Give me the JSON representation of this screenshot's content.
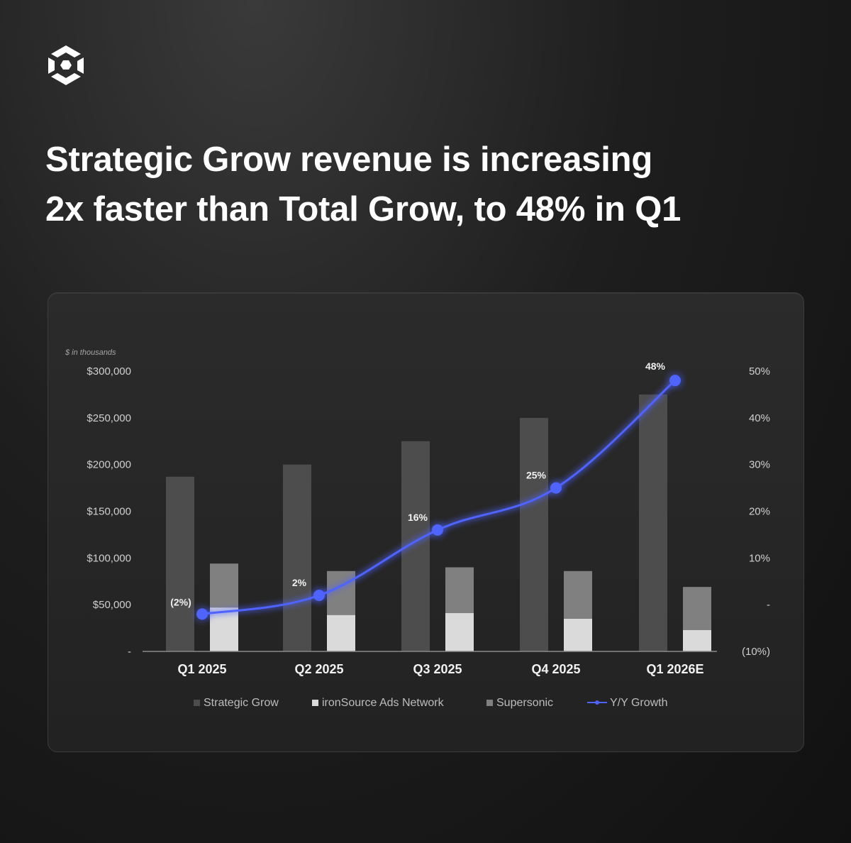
{
  "headline": {
    "line1": "Strategic Grow revenue is increasing",
    "line2": "2x faster than Total Grow, to 48% in Q1"
  },
  "brand": {
    "logo_icon": "unity-cube-logo"
  },
  "colors": {
    "strategic_grow": "#4d4d4d",
    "ironsource_ads_network": "#dadada",
    "supersonic": "#808080",
    "yy_growth": "#4f63ff"
  },
  "chart_data": {
    "type": "bar",
    "unit_note": "$ in thousands",
    "categories": [
      "Q1 2025",
      "Q2 2025",
      "Q3 2025",
      "Q4 2025",
      "Q1 2026E"
    ],
    "left_axis": {
      "ylim": [
        0,
        300000
      ],
      "ticks": [
        {
          "value": 0,
          "label": "-"
        },
        {
          "value": 50000,
          "label": "$50,000"
        },
        {
          "value": 100000,
          "label": "$100,000"
        },
        {
          "value": 150000,
          "label": "$150,000"
        },
        {
          "value": 200000,
          "label": "$200,000"
        },
        {
          "value": 250000,
          "label": "$250,000"
        },
        {
          "value": 300000,
          "label": "$300,000"
        }
      ]
    },
    "right_axis": {
      "ylim": [
        -10,
        50
      ],
      "ticks": [
        {
          "value": -10,
          "label": "(10%)"
        },
        {
          "value": 0,
          "label": "-"
        },
        {
          "value": 10,
          "label": "10%"
        },
        {
          "value": 20,
          "label": "20%"
        },
        {
          "value": 30,
          "label": "30%"
        },
        {
          "value": 40,
          "label": "40%"
        },
        {
          "value": 50,
          "label": "50%"
        }
      ]
    },
    "series": [
      {
        "name": "Strategic Grow",
        "type": "bar",
        "values": [
          187000,
          200000,
          225000,
          250000,
          275000
        ]
      },
      {
        "name": "ironSource Ads Network",
        "type": "stacked-bar",
        "values": [
          47000,
          39000,
          41000,
          35000,
          23000
        ]
      },
      {
        "name": "Supersonic",
        "type": "stacked-bar",
        "values": [
          47000,
          47000,
          49000,
          51000,
          46000
        ]
      },
      {
        "name": "Y/Y Growth",
        "type": "line",
        "axis": "right",
        "values": [
          -2,
          2,
          16,
          25,
          48
        ],
        "labels": [
          "(2%)",
          "2%",
          "16%",
          "25%",
          "48%"
        ]
      }
    ],
    "legend": [
      "Strategic Grow",
      "ironSource Ads Network",
      "Supersonic",
      "Y/Y Growth"
    ],
    "legend_position": "bottom",
    "grid": false
  }
}
